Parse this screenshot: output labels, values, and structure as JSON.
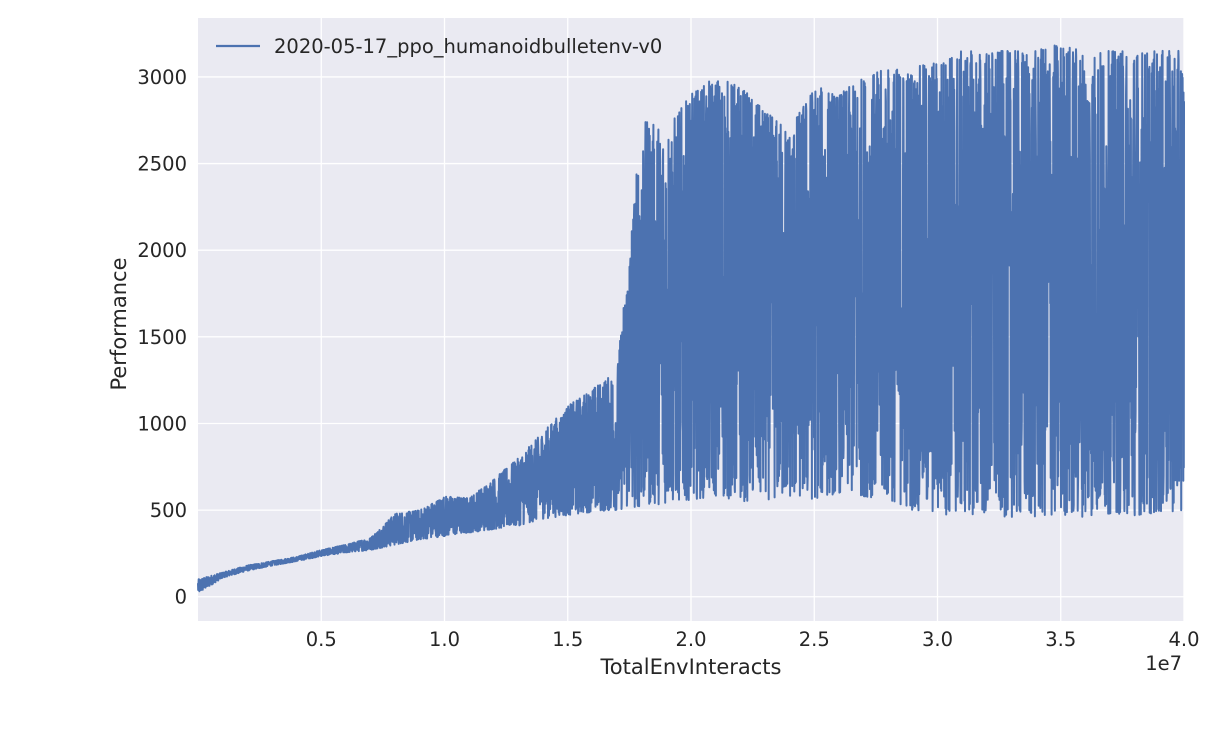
{
  "chart_data": {
    "type": "line",
    "xlabel": "TotalEnvInteracts",
    "ylabel": "Performance",
    "x_scale_label": "1e7",
    "xlim": [
      0,
      40000000
    ],
    "ylim": [
      -140,
      3340
    ],
    "x_ticks": [
      5000000,
      10000000,
      15000000,
      20000000,
      25000000,
      30000000,
      35000000,
      40000000
    ],
    "x_tick_labels": [
      "0.5",
      "1.0",
      "1.5",
      "2.0",
      "2.5",
      "3.0",
      "3.5",
      "4.0"
    ],
    "y_ticks": [
      0,
      500,
      1000,
      1500,
      2000,
      2500,
      3000
    ],
    "y_tick_labels": [
      "0",
      "500",
      "1000",
      "1500",
      "2000",
      "2500",
      "3000"
    ],
    "grid": true,
    "legend_position": "top-left",
    "series": [
      {
        "name": "2020-05-17_ppo_humanoidbulletenv-v0",
        "color": "#4c72b0",
        "x": [
          0,
          1000000,
          2000000,
          3000000,
          4000000,
          5000000,
          6000000,
          7000000,
          8000000,
          9000000,
          10000000,
          11000000,
          12000000,
          13000000,
          14000000,
          15000000,
          16000000,
          17000000,
          18000000,
          19000000,
          20000000,
          21000000,
          22000000,
          23000000,
          24000000,
          25000000,
          26000000,
          27000000,
          28000000,
          29000000,
          30000000,
          31000000,
          32000000,
          33000000,
          34000000,
          35000000,
          36000000,
          37000000,
          38000000,
          39000000,
          40000000
        ],
        "y_low": [
          20,
          110,
          150,
          180,
          205,
          235,
          255,
          270,
          300,
          330,
          350,
          370,
          390,
          410,
          450,
          470,
          490,
          500,
          520,
          540,
          560,
          580,
          550,
          560,
          570,
          560,
          600,
          580,
          560,
          500,
          470,
          480,
          470,
          460,
          450,
          470,
          460,
          480,
          470,
          480,
          500
        ],
        "y_high": [
          100,
          140,
          180,
          205,
          230,
          270,
          300,
          340,
          480,
          500,
          580,
          570,
          680,
          800,
          950,
          1100,
          1200,
          1300,
          2750,
          2700,
          2900,
          3000,
          2950,
          2800,
          2700,
          2950,
          2900,
          3000,
          3050,
          3050,
          3100,
          3150,
          3150,
          3150,
          3150,
          3200,
          3150,
          3150,
          3150,
          3150,
          3150
        ]
      }
    ]
  }
}
